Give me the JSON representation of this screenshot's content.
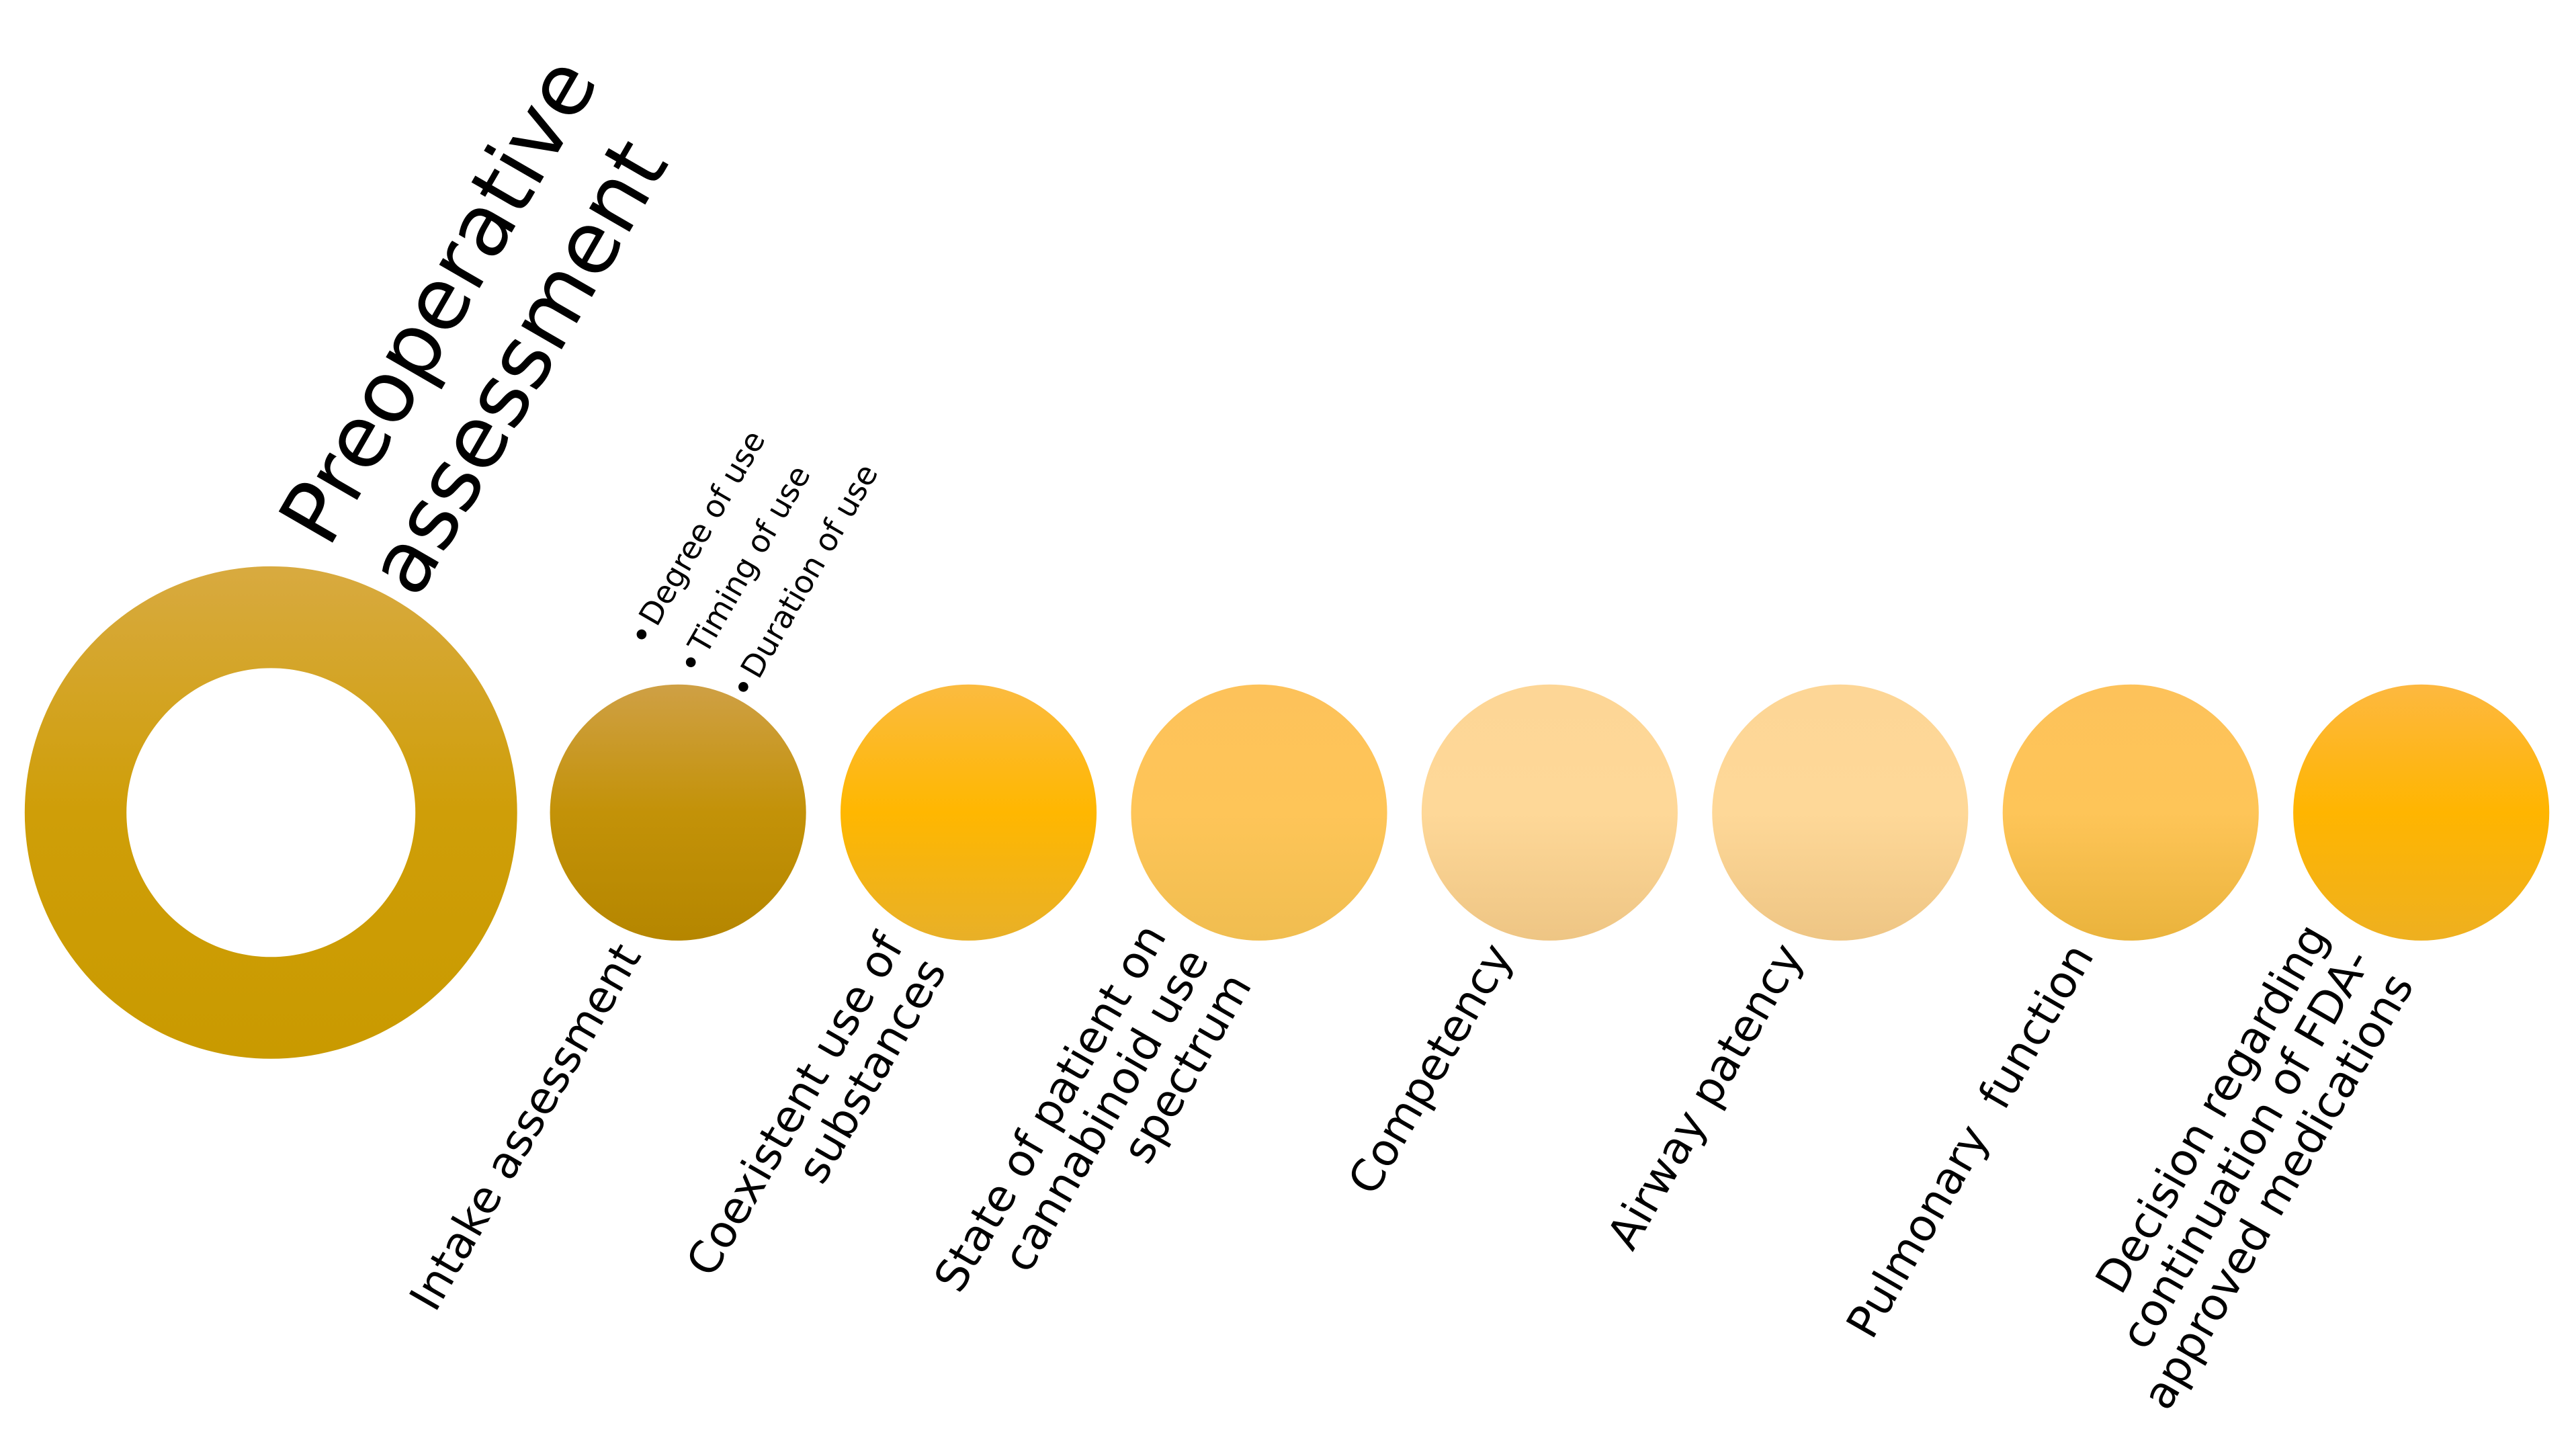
{
  "title": {
    "lines": [
      "Preoperative",
      "assessment"
    ]
  },
  "bullets": [
    "Degree of use",
    "Timing of use",
    "Duration of use"
  ],
  "steps": [
    {
      "lines": [
        "Intake assessment"
      ]
    },
    {
      "lines": [
        "Coexistent use of",
        "substances"
      ]
    },
    {
      "lines": [
        "State of patient on",
        "cannabinoid use",
        "spectrum"
      ]
    },
    {
      "lines": [
        "Competency"
      ]
    },
    {
      "lines": [
        "Airway patency"
      ]
    },
    {
      "lines": [
        "Pulmonary  function"
      ]
    },
    {
      "lines": [
        "Decision regarding",
        "continuation of FDA-",
        "approved medications"
      ]
    }
  ]
}
